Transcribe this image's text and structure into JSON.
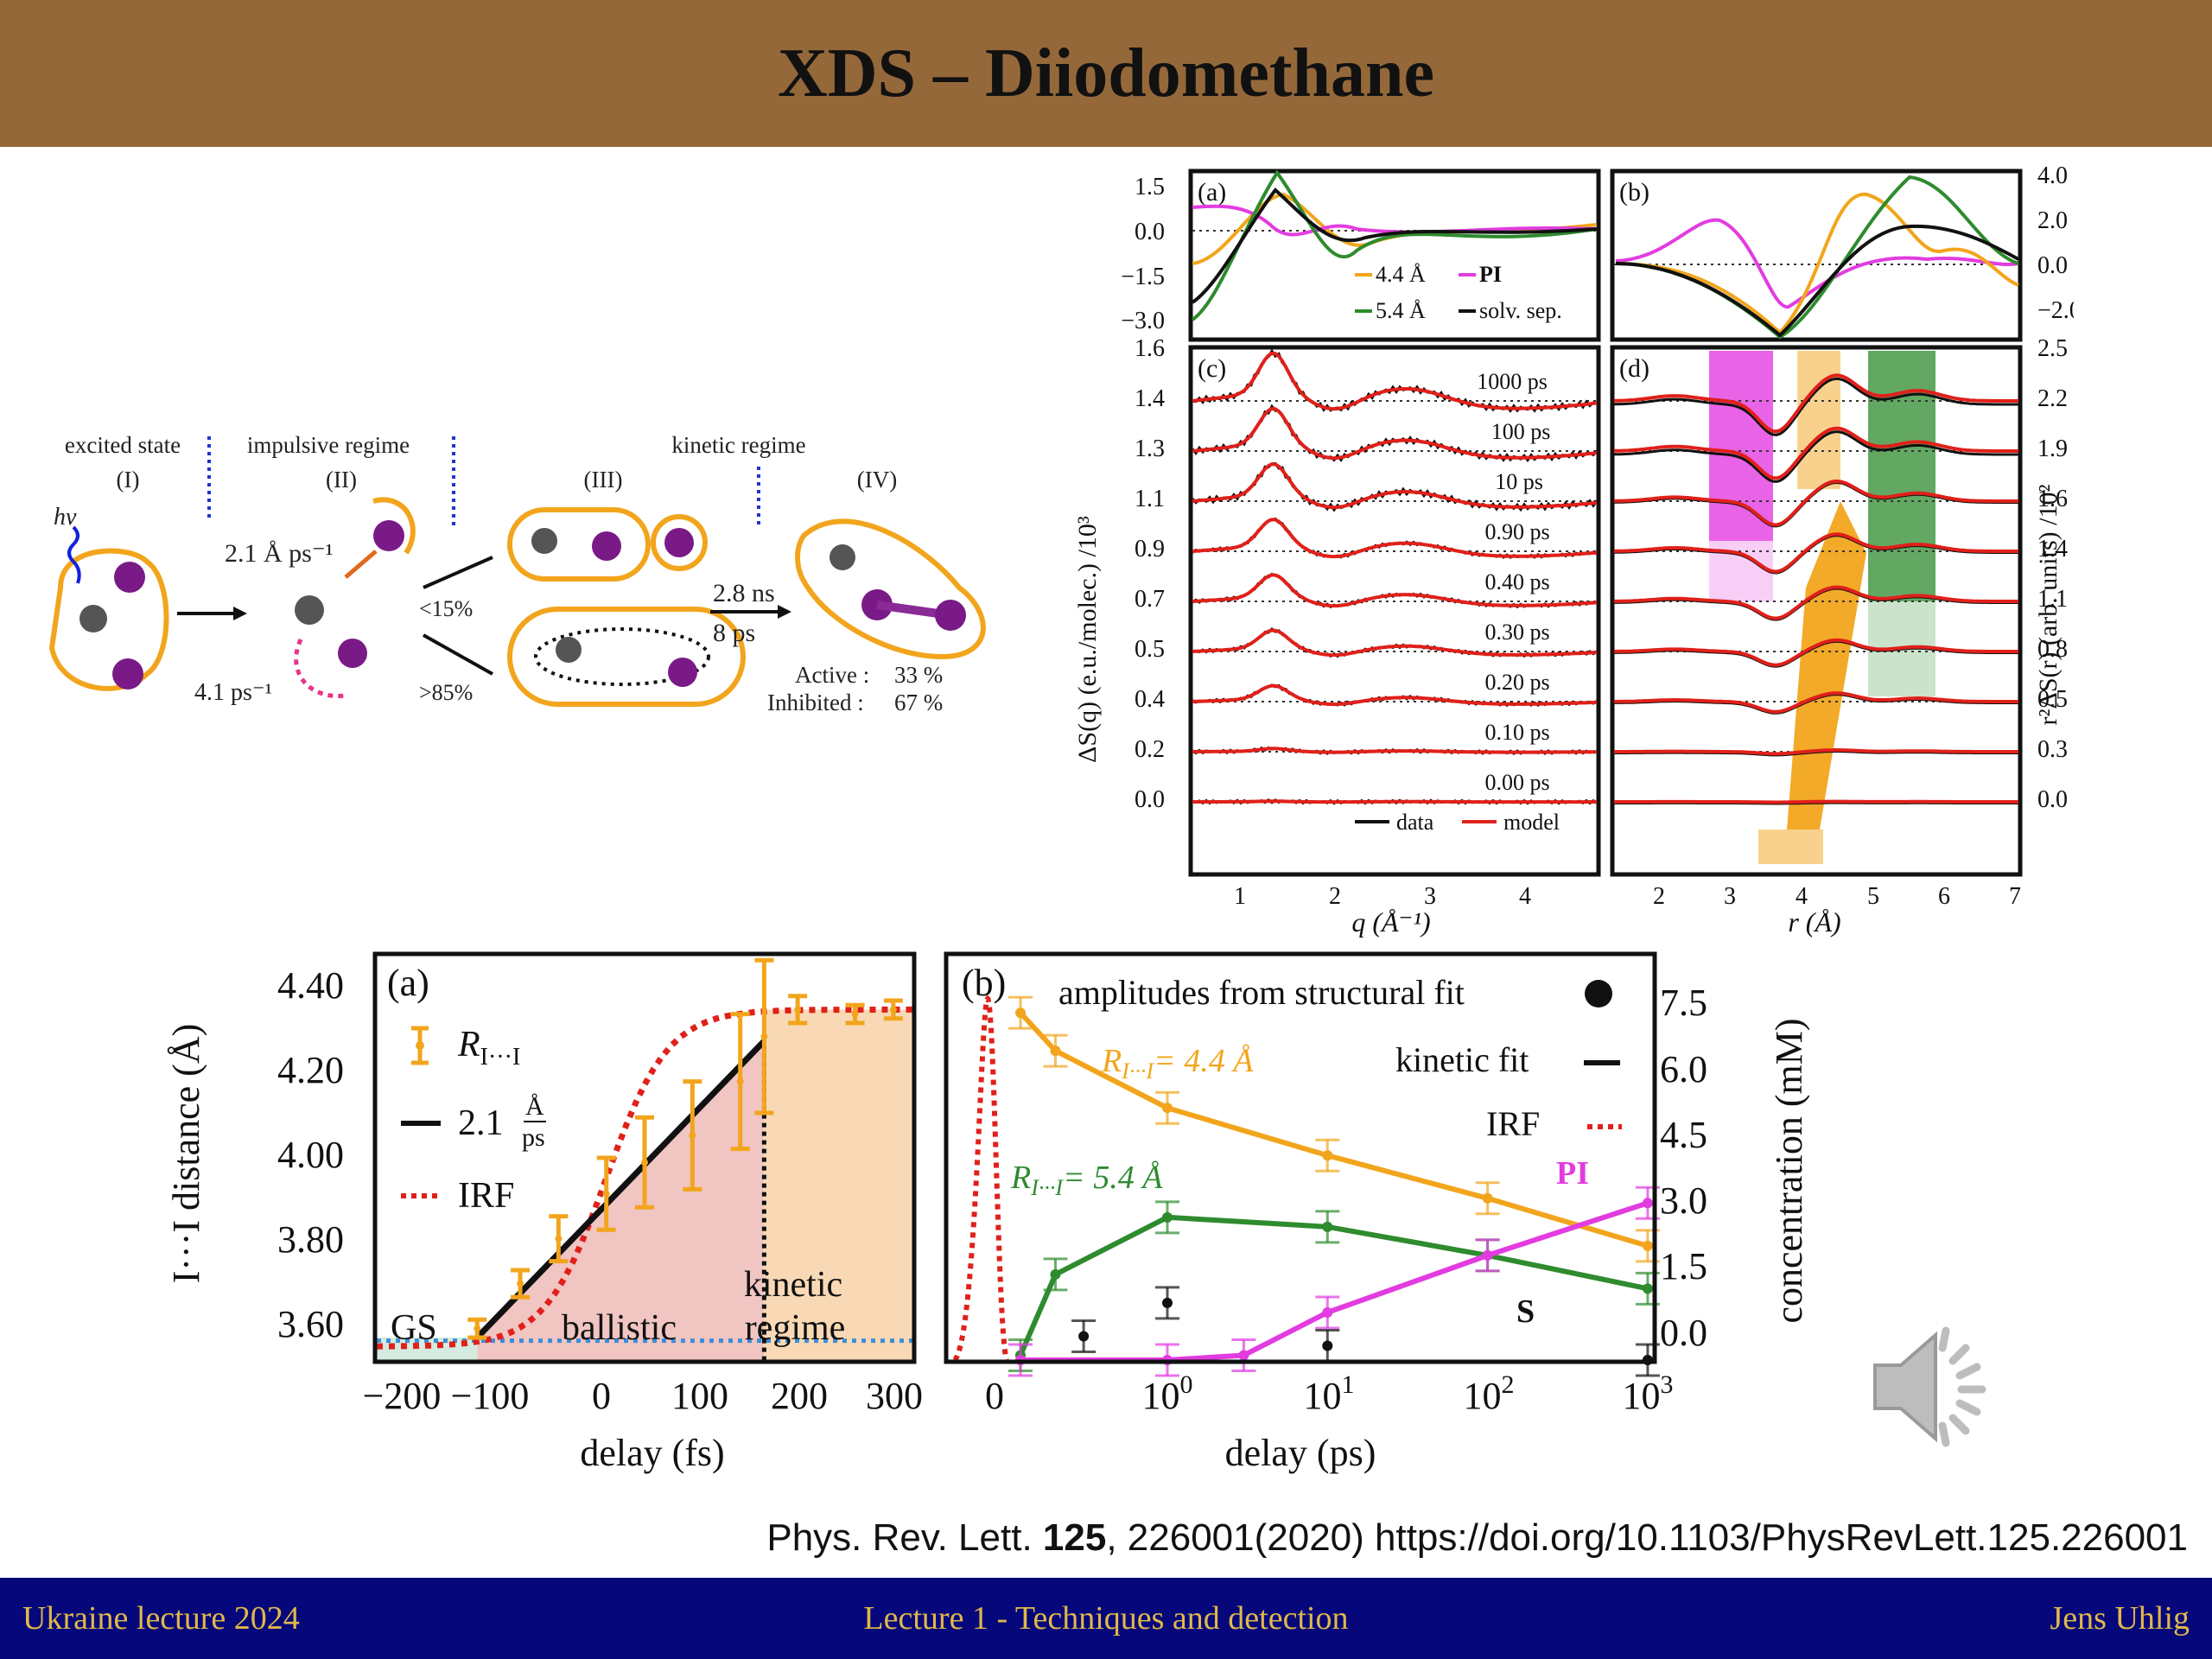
{
  "slide": {
    "title": "XDS – Diiodomethane",
    "citation_pre": "Phys. Rev. Lett. ",
    "citation_vol": "125",
    "citation_post": ", 226001(2020) https://doi.org/10.1103/PhysRevLett.125.226001",
    "footer_left": "Ukraine lecture 2024",
    "footer_center": "Lecture 1 - Techniques and detection",
    "footer_right": "Jens Uhlig",
    "speaker_icon": "speaker-icon"
  },
  "scheme": {
    "stages": [
      "excited state",
      "impulsive regime",
      "kinetic regime"
    ],
    "numerals": [
      "(I)",
      "(II)",
      "(III)",
      "(IV)"
    ],
    "hv": "hν",
    "rate_a": "2.1 Å ps⁻¹",
    "rate_b": "4.1 ps⁻¹",
    "branch_low": "<15%",
    "branch_high": ">85%",
    "time_a": "2.8 ns",
    "time_b": "8 ps",
    "active_label": "Active :",
    "active_value": "33 %",
    "inhibited_label": "Inhibited :",
    "inhibited_value": "67 %"
  },
  "top_figure": {
    "panel_labels": [
      "(a)",
      "(b)",
      "(c)",
      "(d)"
    ],
    "a_yticks": [
      "1.5",
      "0.0",
      "−1.5",
      "−3.0"
    ],
    "b_yticks": [
      "4.0",
      "2.0",
      "0.0",
      "−2.0"
    ],
    "c_yticks": [
      "1.6",
      "1.4",
      "1.3",
      "1.1",
      "0.9",
      "0.7",
      "0.5",
      "0.4",
      "0.2",
      "0.0"
    ],
    "d_yticks": [
      "2.5",
      "2.2",
      "1.9",
      "1.6",
      "1.4",
      "1.1",
      "0.8",
      "0.5",
      "0.3",
      "0.0"
    ],
    "q_ticks": [
      "1",
      "2",
      "3",
      "4"
    ],
    "r_ticks": [
      "2",
      "3",
      "4",
      "5",
      "6",
      "7"
    ],
    "xlabel_q": "q (Å⁻¹)",
    "xlabel_r": "r (Å)",
    "ylabel_left": "ΔS(q) (e.u./molec.) /10³",
    "ylabel_right": "r²ΔS(r) (arb. units) /10²",
    "legend_a": [
      "4.4 Å",
      "PI",
      "5.4 Å",
      "solv. sep."
    ],
    "legend_c": [
      "data",
      "model"
    ],
    "delays": [
      "1000 ps",
      "100 ps",
      "10 ps",
      "0.90 ps",
      "0.40 ps",
      "0.30 ps",
      "0.20 ps",
      "0.10 ps",
      "0.00 ps"
    ],
    "colors": {
      "orange": "#f2a51c",
      "green": "#2e8b2e",
      "magenta": "#e23ce0",
      "red": "#e0201a",
      "black": "#111111"
    }
  },
  "bottom_figure": {
    "a_label": "(a)",
    "b_label": "(b)",
    "a_ylabel": "I···I distance (Å)",
    "a_yticks": [
      "4.40",
      "4.20",
      "4.00",
      "3.80",
      "3.60"
    ],
    "a_xticks": [
      "−200",
      "−100",
      "0",
      "100",
      "200",
      "300"
    ],
    "a_xlabel": "delay (fs)",
    "a_legend": [
      "R",
      "2.1",
      "IRF"
    ],
    "a_legend_sub": "I···I",
    "a_legend_frac_top": "Å",
    "a_legend_frac_bot": "ps",
    "a_regions": [
      "GS",
      "ballistic",
      "kinetic",
      "regime"
    ],
    "b_legend": [
      "amplitudes from structural fit",
      "kinetic fit",
      "IRF"
    ],
    "b_annotations": [
      "R",
      "= 4.4 Å",
      "R",
      "= 5.4 Å",
      "PI",
      "S"
    ],
    "b_sub": "I···I",
    "b_xticks_base": "10",
    "b_xticks_exp": [
      "0",
      "1",
      "2",
      "3"
    ],
    "b_xtick_zero": "0",
    "b_xlabel": "delay (ps)",
    "b_ylabel": "concentration (mM)",
    "b_yticks": [
      "7.5",
      "6.0",
      "4.5",
      "3.0",
      "1.5",
      "0.0"
    ]
  },
  "chart_data": [
    {
      "type": "scatter",
      "title": "",
      "panel": "(a)",
      "xlabel": "delay (fs)",
      "ylabel": "I···I distance (Å)",
      "xlim": [
        -230,
        330
      ],
      "ylim": [
        3.58,
        4.48
      ],
      "series": [
        {
          "name": "R_I···I",
          "x": [
            -125,
            -80,
            -40,
            10,
            50,
            100,
            150,
            175,
            210,
            270,
            310
          ],
          "y": [
            3.65,
            3.75,
            3.85,
            3.95,
            4.02,
            4.08,
            4.2,
            4.3,
            4.36,
            4.35,
            4.36
          ],
          "err": [
            0.02,
            0.03,
            0.05,
            0.08,
            0.1,
            0.12,
            0.15,
            0.17,
            0.03,
            0.02,
            0.02
          ]
        },
        {
          "name": "2.1 Å/ps",
          "x": [
            -125,
            175
          ],
          "y": [
            3.63,
            4.29
          ]
        },
        {
          "name": "IRF",
          "x": [
            -220,
            -100,
            -50,
            0,
            50,
            100,
            150,
            330
          ],
          "y": [
            3.61,
            3.63,
            3.75,
            3.97,
            4.2,
            4.33,
            4.36,
            4.36
          ]
        }
      ]
    },
    {
      "type": "line",
      "title": "",
      "panel": "(b)",
      "xlabel": "delay (ps)",
      "ylabel": "concentration (mM)",
      "xscale": "log",
      "ylim": [
        0,
        8.5
      ],
      "series": [
        {
          "name": "R_I···I = 4.4 Å",
          "x": [
            0.1,
            0.2,
            1,
            10,
            100,
            1000
          ],
          "y": [
            7.3,
            6.5,
            5.3,
            4.3,
            3.4,
            2.4
          ]
        },
        {
          "name": "R_I···I = 5.4 Å",
          "x": [
            0.1,
            0.2,
            1,
            10,
            100,
            1000
          ],
          "y": [
            0.1,
            1.8,
            3.0,
            2.8,
            2.2,
            1.5
          ]
        },
        {
          "name": "PI",
          "x": [
            0.1,
            1,
            3,
            10,
            100,
            1000
          ],
          "y": [
            0.0,
            0.0,
            0.1,
            1.0,
            2.2,
            3.3
          ]
        },
        {
          "name": "S",
          "x": [
            0.3,
            1,
            10,
            1000
          ],
          "y": [
            0.5,
            1.2,
            0.3,
            0.0
          ]
        }
      ]
    }
  ]
}
